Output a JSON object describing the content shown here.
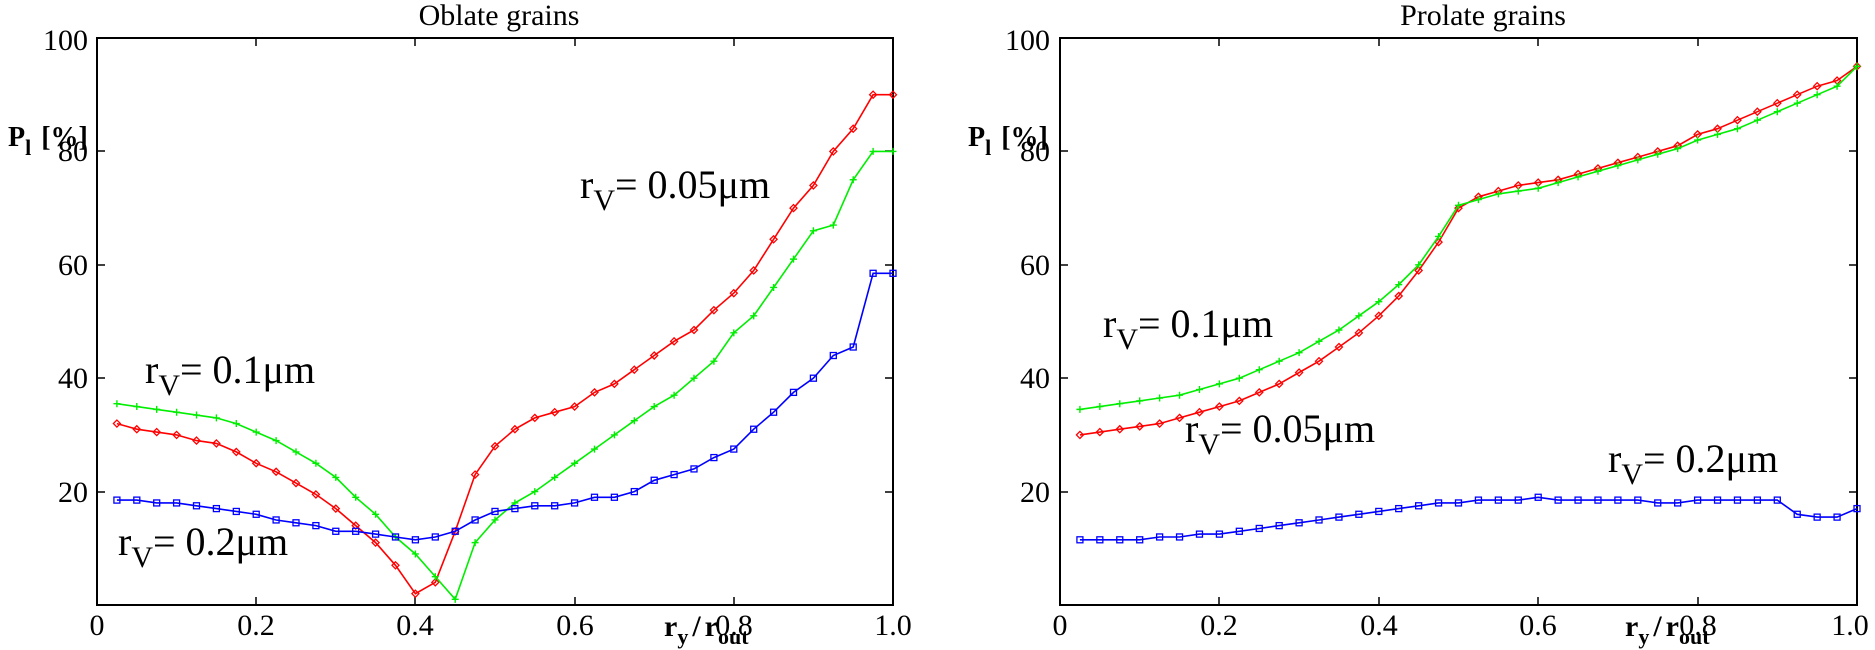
{
  "chart_data": [
    {
      "type": "line",
      "title": "Oblate grains",
      "ylabel_main": "P",
      "ylabel_sub": "l",
      "ylabel_unit": "[%]",
      "xlabel_main": "r",
      "xlabel_sub1": "y",
      "xlabel_slash": "/",
      "xlabel_main2": "r",
      "xlabel_sub2": "out",
      "xlim": [
        0,
        1.0
      ],
      "ylim": [
        0,
        100
      ],
      "x_ticks": [
        0,
        0.2,
        0.4,
        0.6,
        0.8,
        1.0
      ],
      "x_tick_labels": [
        "0",
        "0.2",
        "0.4",
        "0.6",
        "0.8",
        "1.0"
      ],
      "y_ticks": [
        20,
        40,
        60,
        80,
        100
      ],
      "y_tick_labels": [
        "20",
        "40",
        "60",
        "80",
        "100"
      ],
      "series": [
        {
          "name": "r_V = 0.05μm",
          "color": "#ff0000",
          "marker": "diamond",
          "x": [
            0.025,
            0.05,
            0.075,
            0.1,
            0.125,
            0.15,
            0.175,
            0.2,
            0.225,
            0.25,
            0.275,
            0.3,
            0.325,
            0.35,
            0.375,
            0.4,
            0.425,
            0.45,
            0.475,
            0.5,
            0.525,
            0.55,
            0.575,
            0.6,
            0.625,
            0.65,
            0.675,
            0.7,
            0.725,
            0.75,
            0.775,
            0.8,
            0.825,
            0.85,
            0.875,
            0.9,
            0.925,
            0.95,
            0.975,
            1.0
          ],
          "y": [
            32,
            31,
            30.5,
            30,
            29,
            28.5,
            27,
            25,
            23.5,
            21.5,
            19.5,
            17,
            14,
            11,
            7,
            2,
            4,
            13,
            23,
            28,
            31,
            33,
            34,
            35,
            37.5,
            39,
            41.5,
            44,
            46.5,
            48.5,
            52,
            55,
            59,
            64.5,
            70,
            74,
            80,
            84,
            90,
            90
          ]
        },
        {
          "name": "r_V = 0.1μm",
          "color": "#00ee00",
          "marker": "plus",
          "x": [
            0.025,
            0.05,
            0.075,
            0.1,
            0.125,
            0.15,
            0.175,
            0.2,
            0.225,
            0.25,
            0.275,
            0.3,
            0.325,
            0.35,
            0.375,
            0.4,
            0.425,
            0.45,
            0.475,
            0.5,
            0.525,
            0.55,
            0.575,
            0.6,
            0.625,
            0.65,
            0.675,
            0.7,
            0.725,
            0.75,
            0.775,
            0.8,
            0.825,
            0.85,
            0.875,
            0.9,
            0.925,
            0.95,
            0.975,
            1.0
          ],
          "y": [
            35.5,
            35,
            34.5,
            34,
            33.5,
            33,
            32,
            30.5,
            29,
            27,
            25,
            22.5,
            19,
            16,
            12,
            9,
            5,
            1,
            11,
            15,
            18,
            20,
            22.5,
            25,
            27.5,
            30,
            32.5,
            35,
            37,
            40,
            43,
            48,
            51,
            56,
            61,
            66,
            67,
            75,
            80,
            80
          ]
        },
        {
          "name": "r_V = 0.2μm",
          "color": "#0000ff",
          "marker": "square",
          "x": [
            0.025,
            0.05,
            0.075,
            0.1,
            0.125,
            0.15,
            0.175,
            0.2,
            0.225,
            0.25,
            0.275,
            0.3,
            0.325,
            0.35,
            0.375,
            0.4,
            0.425,
            0.45,
            0.475,
            0.5,
            0.525,
            0.55,
            0.575,
            0.6,
            0.625,
            0.65,
            0.675,
            0.7,
            0.725,
            0.75,
            0.775,
            0.8,
            0.825,
            0.85,
            0.875,
            0.9,
            0.925,
            0.95,
            0.975,
            1.0
          ],
          "y": [
            18.5,
            18.5,
            18,
            18,
            17.5,
            17,
            16.5,
            16,
            15,
            14.5,
            14,
            13,
            13,
            12.5,
            12,
            11.5,
            12,
            13,
            15,
            16.5,
            17,
            17.5,
            17.5,
            18,
            19,
            19,
            20,
            22,
            23,
            24,
            26,
            27.5,
            31,
            34,
            37.5,
            40,
            44,
            45.5,
            58.5,
            58.5
          ]
        }
      ],
      "annotations": [
        {
          "main": "r",
          "sub": "V",
          "rest": "= 0.05μm"
        },
        {
          "main": "r",
          "sub": "V",
          "rest": "= 0.1μm"
        },
        {
          "main": "r",
          "sub": "V",
          "rest": "= 0.2μm"
        }
      ]
    },
    {
      "type": "line",
      "title": "Prolate grains",
      "ylabel_main": "P",
      "ylabel_sub": "l",
      "ylabel_unit": "[%]",
      "xlabel_main": "r",
      "xlabel_sub1": "y",
      "xlabel_slash": "/",
      "xlabel_main2": "r",
      "xlabel_sub2": "out",
      "xlim": [
        0,
        1.0
      ],
      "ylim": [
        0,
        100
      ],
      "x_ticks": [
        0,
        0.2,
        0.4,
        0.6,
        0.8,
        1.0
      ],
      "x_tick_labels": [
        "0",
        "0.2",
        "0.4",
        "0.6",
        "0.8",
        "1.0"
      ],
      "y_ticks": [
        20,
        40,
        60,
        80,
        100
      ],
      "y_tick_labels": [
        "20",
        "40",
        "60",
        "80",
        "100"
      ],
      "series": [
        {
          "name": "r_V = 0.05μm",
          "color": "#ff0000",
          "marker": "diamond",
          "x": [
            0.025,
            0.05,
            0.075,
            0.1,
            0.125,
            0.15,
            0.175,
            0.2,
            0.225,
            0.25,
            0.275,
            0.3,
            0.325,
            0.35,
            0.375,
            0.4,
            0.425,
            0.45,
            0.475,
            0.5,
            0.525,
            0.55,
            0.575,
            0.6,
            0.625,
            0.65,
            0.675,
            0.7,
            0.725,
            0.75,
            0.775,
            0.8,
            0.825,
            0.85,
            0.875,
            0.9,
            0.925,
            0.95,
            0.975,
            1.0
          ],
          "y": [
            30,
            30.5,
            31,
            31.5,
            32,
            33,
            34,
            35,
            36,
            37.5,
            39,
            41,
            43,
            45.5,
            48,
            51,
            54.5,
            59,
            64,
            70,
            72,
            73,
            74,
            74.5,
            75,
            76,
            77,
            78,
            79,
            80,
            81,
            83,
            84,
            85.5,
            87,
            88.5,
            90,
            91.5,
            92.5,
            95
          ]
        },
        {
          "name": "r_V = 0.1μm",
          "color": "#00ee00",
          "marker": "plus",
          "x": [
            0.025,
            0.05,
            0.075,
            0.1,
            0.125,
            0.15,
            0.175,
            0.2,
            0.225,
            0.25,
            0.275,
            0.3,
            0.325,
            0.35,
            0.375,
            0.4,
            0.425,
            0.45,
            0.475,
            0.5,
            0.525,
            0.55,
            0.575,
            0.6,
            0.625,
            0.65,
            0.675,
            0.7,
            0.725,
            0.75,
            0.775,
            0.8,
            0.825,
            0.85,
            0.875,
            0.9,
            0.925,
            0.95,
            0.975,
            1.0
          ],
          "y": [
            34.5,
            35,
            35.5,
            36,
            36.5,
            37,
            38,
            39,
            40,
            41.5,
            43,
            44.5,
            46.5,
            48.5,
            51,
            53.5,
            56.5,
            60,
            65,
            70.5,
            71.5,
            72.5,
            73,
            73.5,
            74.5,
            75.5,
            76.5,
            77.5,
            78.5,
            79.5,
            80.5,
            82,
            83,
            84,
            85.5,
            87,
            88.5,
            90,
            91.5,
            95
          ]
        },
        {
          "name": "r_V = 0.2μm",
          "color": "#0000ff",
          "marker": "square",
          "x": [
            0.025,
            0.05,
            0.075,
            0.1,
            0.125,
            0.15,
            0.175,
            0.2,
            0.225,
            0.25,
            0.275,
            0.3,
            0.325,
            0.35,
            0.375,
            0.4,
            0.425,
            0.45,
            0.475,
            0.5,
            0.525,
            0.55,
            0.575,
            0.6,
            0.625,
            0.65,
            0.675,
            0.7,
            0.725,
            0.75,
            0.775,
            0.8,
            0.825,
            0.85,
            0.875,
            0.9,
            0.925,
            0.95,
            0.975,
            1.0
          ],
          "y": [
            11.5,
            11.5,
            11.5,
            11.5,
            12,
            12,
            12.5,
            12.5,
            13,
            13.5,
            14,
            14.5,
            15,
            15.5,
            16,
            16.5,
            17,
            17.5,
            18,
            18,
            18.5,
            18.5,
            18.5,
            19,
            18.5,
            18.5,
            18.5,
            18.5,
            18.5,
            18,
            18,
            18.5,
            18.5,
            18.5,
            18.5,
            18.5,
            16,
            15.5,
            15.5,
            17
          ]
        }
      ],
      "annotations": [
        {
          "main": "r",
          "sub": "V",
          "rest": "= 0.1μm"
        },
        {
          "main": "r",
          "sub": "V",
          "rest": "= 0.05μm"
        },
        {
          "main": "r",
          "sub": "V",
          "rest": "= 0.2μm"
        }
      ]
    }
  ]
}
